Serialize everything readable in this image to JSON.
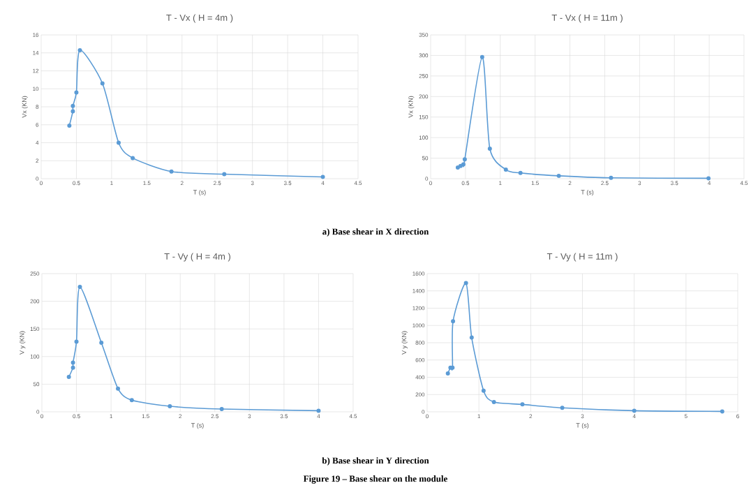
{
  "chart_data": [
    {
      "type": "line",
      "title": "T - Vx ( H = 4m )",
      "xlabel": "T (s)",
      "ylabel": "Vx (KN)",
      "x": [
        0.4,
        0.45,
        0.45,
        0.5,
        0.55,
        0.87,
        1.1,
        1.3,
        1.85,
        2.6,
        4.0
      ],
      "series": [
        {
          "color": "#5b9bd5",
          "values": [
            5.9,
            7.5,
            8.1,
            9.6,
            14.3,
            10.6,
            4.0,
            2.3,
            0.8,
            0.5,
            0.2
          ]
        }
      ],
      "xlim": [
        0,
        4.5
      ],
      "ylim": [
        0,
        16
      ],
      "xticks": [
        0,
        0.5,
        1,
        1.5,
        2,
        2.5,
        3,
        3.5,
        4,
        4.5
      ],
      "yticks": [
        0,
        2,
        4,
        6,
        8,
        10,
        12,
        14,
        16
      ],
      "grid": true,
      "marker": "circle"
    },
    {
      "type": "line",
      "title": "T - Vx ( H = 11m )",
      "xlabel": "T (s)",
      "ylabel": "Vx (KN)",
      "x": [
        0.39,
        0.43,
        0.47,
        0.49,
        0.74,
        0.85,
        1.08,
        1.29,
        1.84,
        2.59,
        3.99
      ],
      "series": [
        {
          "color": "#5b9bd5",
          "values": [
            27,
            31,
            35,
            47,
            296,
            73,
            22,
            14,
            7,
            2,
            1
          ]
        }
      ],
      "xlim": [
        0,
        4.5
      ],
      "ylim": [
        0,
        350
      ],
      "xticks": [
        0,
        0.5,
        1,
        1.5,
        2,
        2.5,
        3,
        3.5,
        4,
        4.5
      ],
      "yticks": [
        0,
        50,
        100,
        150,
        200,
        250,
        300,
        350
      ],
      "grid": true,
      "marker": "circle",
      "annotations": [
        "a) Base shear in X direction"
      ]
    },
    {
      "type": "line",
      "title": "T - Vy ( H = 4m )",
      "xlabel": "T (s)",
      "ylabel": "V y (KN)",
      "x": [
        0.39,
        0.45,
        0.45,
        0.5,
        0.55,
        0.86,
        1.1,
        1.3,
        1.85,
        2.6,
        4.0
      ],
      "series": [
        {
          "color": "#5b9bd5",
          "values": [
            63,
            80,
            89,
            127,
            226,
            125,
            42,
            21,
            10,
            5,
            2
          ]
        }
      ],
      "xlim": [
        0,
        4.5
      ],
      "ylim": [
        0,
        250
      ],
      "xticks": [
        0,
        0.5,
        1,
        1.5,
        2,
        2.5,
        3,
        3.5,
        4,
        4.5
      ],
      "yticks": [
        0,
        50,
        100,
        150,
        200,
        250
      ],
      "grid": true,
      "marker": "circle"
    },
    {
      "type": "line",
      "title": "T - Vy ( H = 11m )",
      "xlabel": "T (s)",
      "ylabel": "V y (KN)",
      "x": [
        0.4,
        0.45,
        0.49,
        0.5,
        0.75,
        0.86,
        1.09,
        1.29,
        1.84,
        2.61,
        4.0,
        5.7
      ],
      "series": [
        {
          "color": "#5b9bd5",
          "values": [
            445,
            512,
            512,
            1048,
            1490,
            860,
            245,
            113,
            86,
            46,
            13,
            5
          ]
        }
      ],
      "xlim": [
        0,
        6
      ],
      "ylim": [
        0,
        1600
      ],
      "xticks": [
        0,
        1,
        2,
        3,
        4,
        5,
        6
      ],
      "yticks": [
        0,
        200,
        400,
        600,
        800,
        1000,
        1200,
        1400,
        1600
      ],
      "grid": true,
      "marker": "circle",
      "annotations": [
        "b) Base shear in Y direction",
        "Figure 19 – Base shear on the module"
      ]
    }
  ]
}
